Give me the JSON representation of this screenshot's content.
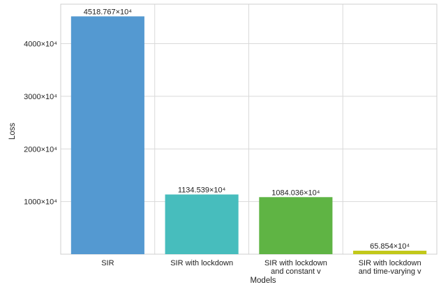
{
  "chart_data": {
    "type": "bar",
    "xlabel": "Models",
    "ylabel": "Loss",
    "y_unit_suffix": "×10^4",
    "y_ticks": [
      1000,
      2000,
      3000,
      4000
    ],
    "y_tick_labels": [
      "1000×10⁴",
      "2000×10⁴",
      "3000×10⁴",
      "4000×10⁴"
    ],
    "ylim": [
      0,
      4750
    ],
    "grid": true,
    "categories": [
      {
        "lines": [
          "SIR"
        ]
      },
      {
        "lines": [
          "SIR with lockdown"
        ]
      },
      {
        "lines": [
          "SIR with lockdown",
          "and constant v"
        ]
      },
      {
        "lines": [
          "SIR with lockdown",
          "and time-varying v"
        ]
      }
    ],
    "values": [
      4518.767,
      1134.539,
      1084.036,
      65.854
    ],
    "value_labels": [
      "4518.767×10⁴",
      "1134.539×10⁴",
      "1084.036×10⁴",
      "65.854×10⁴"
    ],
    "colors": [
      "#5499d1",
      "#47bdbd",
      "#5fb444",
      "#c2c819"
    ]
  }
}
